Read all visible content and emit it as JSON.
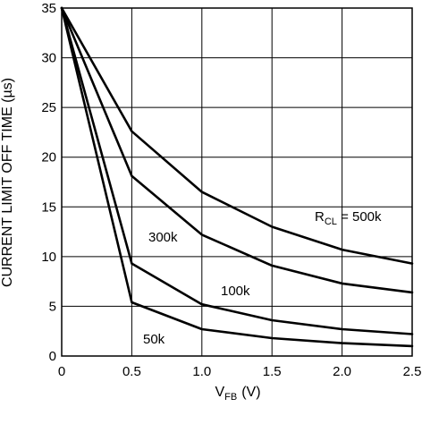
{
  "chart_data": {
    "type": "line",
    "title": "",
    "xlabel": {
      "main": "V",
      "sub": "FB",
      "unit": "(V)"
    },
    "ylabel": "CURRENT LIMIT OFF TIME (µs)",
    "xlim": [
      0,
      2.5
    ],
    "ylim": [
      0,
      35
    ],
    "grid": true,
    "x_ticks": [
      "0",
      "0.5",
      "1.0",
      "1.5",
      "2.0",
      "2.5"
    ],
    "y_ticks": [
      "0",
      "5",
      "10",
      "15",
      "20",
      "25",
      "30",
      "35"
    ],
    "x": [
      0,
      0.5,
      1.0,
      1.5,
      2.0,
      2.5
    ],
    "series": [
      {
        "name": "500k",
        "label_prefix": "R",
        "label_sub": "CL",
        "label_suffix": " = 500k",
        "values": [
          35,
          22.6,
          16.5,
          13.0,
          10.7,
          9.3
        ]
      },
      {
        "name": "300k",
        "values": [
          35,
          18.1,
          12.2,
          9.1,
          7.3,
          6.4
        ]
      },
      {
        "name": "100k",
        "values": [
          35,
          9.3,
          5.2,
          3.6,
          2.7,
          2.2
        ]
      },
      {
        "name": "50k",
        "values": [
          35,
          5.4,
          2.7,
          1.8,
          1.3,
          1.0
        ]
      }
    ]
  }
}
